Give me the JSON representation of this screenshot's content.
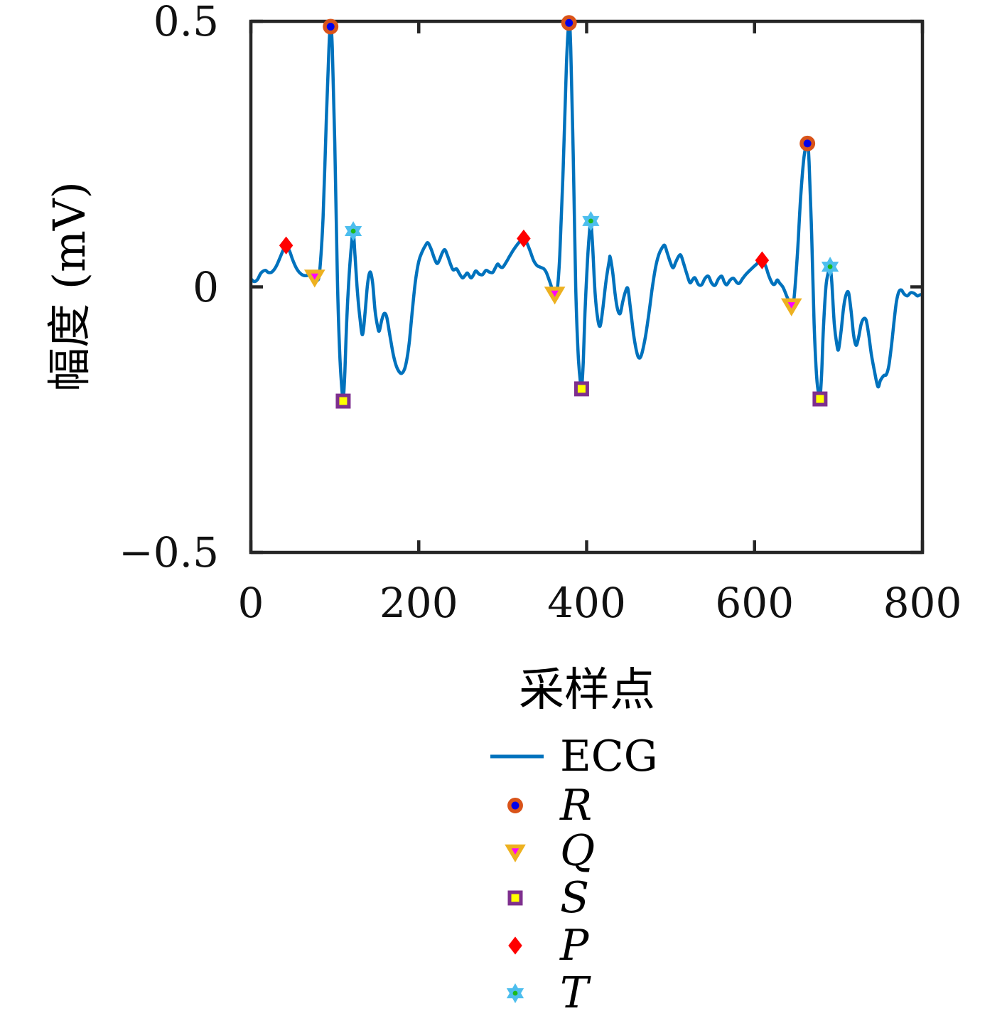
{
  "page": {
    "background": "#FFFFFF"
  },
  "chart_data": {
    "type": "line",
    "title": "",
    "xlabel": "采样点",
    "ylabel": "幅度 (mV)",
    "xlim": [
      0,
      800
    ],
    "ylim": [
      -0.5,
      0.5
    ],
    "grid": false,
    "legend_position": "below-center",
    "colors": {
      "line": "#0072BD",
      "axis": "#262626",
      "tick_text": "#111111"
    },
    "xticks": [
      {
        "v": 0,
        "label": "0"
      },
      {
        "v": 200,
        "label": "200"
      },
      {
        "v": 400,
        "label": "400"
      },
      {
        "v": 600,
        "label": "600"
      },
      {
        "v": 800,
        "label": "800"
      }
    ],
    "yticks": [
      {
        "v": -0.5,
        "label": "−0.5"
      },
      {
        "v": 0,
        "label": "0"
      },
      {
        "v": 0.5,
        "label": "0.5"
      }
    ],
    "series": [
      {
        "name": "ECG",
        "type": "line",
        "points": [
          [
            0,
            0.015
          ],
          [
            4,
            0.01
          ],
          [
            8,
            0.014
          ],
          [
            12,
            0.026
          ],
          [
            17,
            0.031
          ],
          [
            21,
            0.027
          ],
          [
            25,
            0.028
          ],
          [
            30,
            0.038
          ],
          [
            35,
            0.056
          ],
          [
            39,
            0.071
          ],
          [
            42,
            0.078
          ],
          [
            46,
            0.068
          ],
          [
            50,
            0.05
          ],
          [
            55,
            0.033
          ],
          [
            60,
            0.024
          ],
          [
            65,
            0.021
          ],
          [
            70,
            0.023
          ],
          [
            73,
            0.024
          ],
          [
            76,
            0.02
          ],
          [
            79,
            0.012
          ],
          [
            82,
            0.03
          ],
          [
            86,
            0.13
          ],
          [
            90,
            0.32
          ],
          [
            93,
            0.45
          ],
          [
            95,
            0.49
          ],
          [
            97,
            0.45
          ],
          [
            100,
            0.27
          ],
          [
            103,
            0.02
          ],
          [
            106,
            -0.13
          ],
          [
            109,
            -0.205
          ],
          [
            110,
            -0.215
          ],
          [
            112,
            -0.16
          ],
          [
            114,
            -0.07
          ],
          [
            117,
            0.02
          ],
          [
            120,
            0.082
          ],
          [
            122,
            0.105
          ],
          [
            124,
            0.06
          ],
          [
            127,
            -0.01
          ],
          [
            130,
            -0.06
          ],
          [
            133,
            -0.09
          ],
          [
            136,
            -0.05
          ],
          [
            139,
            0.005
          ],
          [
            142,
            0.028
          ],
          [
            145,
            0.008
          ],
          [
            148,
            -0.045
          ],
          [
            151,
            -0.075
          ],
          [
            153,
            -0.083
          ],
          [
            156,
            -0.062
          ],
          [
            159,
            -0.05
          ],
          [
            162,
            -0.058
          ],
          [
            166,
            -0.095
          ],
          [
            170,
            -0.13
          ],
          [
            174,
            -0.152
          ],
          [
            179,
            -0.163
          ],
          [
            183,
            -0.155
          ],
          [
            186,
            -0.135
          ],
          [
            189,
            -0.1
          ],
          [
            192,
            -0.05
          ],
          [
            196,
            0.01
          ],
          [
            200,
            0.048
          ],
          [
            204,
            0.066
          ],
          [
            208,
            0.078
          ],
          [
            211,
            0.083
          ],
          [
            215,
            0.07
          ],
          [
            219,
            0.052
          ],
          [
            222,
            0.044
          ],
          [
            225,
            0.052
          ],
          [
            228,
            0.064
          ],
          [
            231,
            0.07
          ],
          [
            234,
            0.06
          ],
          [
            238,
            0.042
          ],
          [
            241,
            0.032
          ],
          [
            245,
            0.034
          ],
          [
            248,
            0.026
          ],
          [
            252,
            0.017
          ],
          [
            255,
            0.021
          ],
          [
            258,
            0.026
          ],
          [
            262,
            0.017
          ],
          [
            265,
            0.022
          ],
          [
            268,
            0.03
          ],
          [
            272,
            0.024
          ],
          [
            276,
            0.023
          ],
          [
            280,
            0.031
          ],
          [
            284,
            0.028
          ],
          [
            288,
            0.027
          ],
          [
            291,
            0.035
          ],
          [
            294,
            0.043
          ],
          [
            297,
            0.038
          ],
          [
            300,
            0.037
          ],
          [
            304,
            0.046
          ],
          [
            308,
            0.057
          ],
          [
            313,
            0.07
          ],
          [
            318,
            0.081
          ],
          [
            322,
            0.088
          ],
          [
            325,
            0.091
          ],
          [
            329,
            0.082
          ],
          [
            333,
            0.066
          ],
          [
            337,
            0.049
          ],
          [
            341,
            0.04
          ],
          [
            345,
            0.037
          ],
          [
            349,
            0.034
          ],
          [
            352,
            0.027
          ],
          [
            356,
            0.01
          ],
          [
            359,
            -0.004
          ],
          [
            362,
            -0.012
          ],
          [
            365,
            -0.005
          ],
          [
            368,
            0.06
          ],
          [
            372,
            0.22
          ],
          [
            376,
            0.42
          ],
          [
            379,
            0.497
          ],
          [
            381,
            0.45
          ],
          [
            384,
            0.25
          ],
          [
            387,
            0
          ],
          [
            390,
            -0.13
          ],
          [
            393,
            -0.185
          ],
          [
            394,
            -0.192
          ],
          [
            396,
            -0.14
          ],
          [
            398,
            -0.05
          ],
          [
            401,
            0.05
          ],
          [
            404,
            0.115
          ],
          [
            405,
            0.124
          ],
          [
            407,
            0.08
          ],
          [
            410,
            -0.01
          ],
          [
            413,
            -0.058
          ],
          [
            416,
            -0.074
          ],
          [
            419,
            -0.045
          ],
          [
            423,
            0.01
          ],
          [
            427,
            0.05
          ],
          [
            428,
            0.056
          ],
          [
            431,
            0.028
          ],
          [
            434,
            -0.015
          ],
          [
            437,
            -0.043
          ],
          [
            440,
            -0.05
          ],
          [
            443,
            -0.028
          ],
          [
            446,
            -0.01
          ],
          [
            449,
            -0.003
          ],
          [
            452,
            -0.038
          ],
          [
            456,
            -0.09
          ],
          [
            460,
            -0.125
          ],
          [
            463,
            -0.134
          ],
          [
            466,
            -0.124
          ],
          [
            470,
            -0.094
          ],
          [
            474,
            -0.052
          ],
          [
            478,
            -0.004
          ],
          [
            482,
            0.036
          ],
          [
            486,
            0.061
          ],
          [
            490,
            0.074
          ],
          [
            493,
            0.078
          ],
          [
            496,
            0.064
          ],
          [
            500,
            0.045
          ],
          [
            503,
            0.036
          ],
          [
            506,
            0.046
          ],
          [
            509,
            0.056
          ],
          [
            512,
            0.06
          ],
          [
            515,
            0.047
          ],
          [
            519,
            0.026
          ],
          [
            523,
            0.008
          ],
          [
            526,
            0.013
          ],
          [
            529,
            0.017
          ],
          [
            533,
            0.005
          ],
          [
            537,
            0.004
          ],
          [
            541,
            0.016
          ],
          [
            545,
            0.02
          ],
          [
            549,
            0.007
          ],
          [
            553,
            0.003
          ],
          [
            557,
            0.015
          ],
          [
            561,
            0.02
          ],
          [
            564,
            0.009
          ],
          [
            567,
            0.004
          ],
          [
            571,
            0.013
          ],
          [
            575,
            0.016
          ],
          [
            579,
            0.008
          ],
          [
            582,
            0.007
          ],
          [
            586,
            0.016
          ],
          [
            590,
            0.024
          ],
          [
            595,
            0.032
          ],
          [
            599,
            0.038
          ],
          [
            604,
            0.045
          ],
          [
            609,
            0.05
          ],
          [
            613,
            0.04
          ],
          [
            617,
            0.021
          ],
          [
            621,
            0.007
          ],
          [
            624,
            0.005
          ],
          [
            627,
            0.013
          ],
          [
            630,
            0.007
          ],
          [
            634,
            -0.001
          ],
          [
            638,
            -0.016
          ],
          [
            641,
            -0.027
          ],
          [
            644,
            -0.034
          ],
          [
            647,
            -0.022
          ],
          [
            651,
            0.06
          ],
          [
            655,
            0.17
          ],
          [
            659,
            0.245
          ],
          [
            663,
            0.27
          ],
          [
            665,
            0.235
          ],
          [
            668,
            0.1
          ],
          [
            671,
            -0.07
          ],
          [
            674,
            -0.17
          ],
          [
            677,
            -0.207
          ],
          [
            678,
            -0.211
          ],
          [
            680,
            -0.16
          ],
          [
            682,
            -0.08
          ],
          [
            685,
            0
          ],
          [
            688,
            0.028
          ],
          [
            690,
            0.038
          ],
          [
            692,
            0.01
          ],
          [
            695,
            -0.07
          ],
          [
            698,
            -0.108
          ],
          [
            700,
            -0.118
          ],
          [
            703,
            -0.085
          ],
          [
            706,
            -0.04
          ],
          [
            709,
            -0.015
          ],
          [
            712,
            -0.011
          ],
          [
            715,
            -0.045
          ],
          [
            718,
            -0.09
          ],
          [
            721,
            -0.11
          ],
          [
            724,
            -0.095
          ],
          [
            727,
            -0.07
          ],
          [
            730,
            -0.06
          ],
          [
            733,
            -0.063
          ],
          [
            736,
            -0.09
          ],
          [
            739,
            -0.125
          ],
          [
            743,
            -0.16
          ],
          [
            747,
            -0.188
          ],
          [
            750,
            -0.176
          ],
          [
            754,
            -0.167
          ],
          [
            757,
            -0.165
          ],
          [
            760,
            -0.148
          ],
          [
            763,
            -0.112
          ],
          [
            766,
            -0.068
          ],
          [
            769,
            -0.028
          ],
          [
            772,
            -0.009
          ],
          [
            775,
            -0.006
          ],
          [
            778,
            -0.013
          ],
          [
            782,
            -0.017
          ],
          [
            786,
            -0.011
          ],
          [
            790,
            -0.012
          ],
          [
            794,
            -0.017
          ],
          [
            797,
            -0.015
          ],
          [
            800,
            -0.014
          ]
        ]
      }
    ],
    "marker_series": [
      {
        "name": "R",
        "shape": "circle",
        "face": "#0000EA",
        "edge": "#D95319",
        "points": [
          [
            95,
            0.49
          ],
          [
            379,
            0.497
          ],
          [
            663,
            0.27
          ]
        ]
      },
      {
        "name": "Q",
        "shape": "triangle-down",
        "face": "#FF00FF",
        "edge": "#EDB120",
        "points": [
          [
            76,
            0.02
          ],
          [
            362,
            -0.012
          ],
          [
            644,
            -0.034
          ]
        ]
      },
      {
        "name": "S",
        "shape": "square",
        "face": "#FFFF00",
        "edge": "#7E2F8E",
        "points": [
          [
            110,
            -0.215
          ],
          [
            394,
            -0.192
          ],
          [
            678,
            -0.211
          ]
        ]
      },
      {
        "name": "P",
        "shape": "diamond",
        "face": "#FF0000",
        "edge": "#FF0000",
        "points": [
          [
            42,
            0.078
          ],
          [
            325,
            0.091
          ],
          [
            609,
            0.05
          ]
        ]
      },
      {
        "name": "T",
        "shape": "hexagram",
        "face": "#4DBEEE",
        "edge": "#4DBEEE",
        "center_dot": "#1DB91D",
        "points": [
          [
            122,
            0.105
          ],
          [
            405,
            0.124
          ],
          [
            690,
            0.038
          ]
        ]
      }
    ],
    "legend": {
      "items": [
        {
          "label": "ECG",
          "marker": "line"
        },
        {
          "label": "R",
          "marker": "R"
        },
        {
          "label": "Q",
          "marker": "Q"
        },
        {
          "label": "S",
          "marker": "S"
        },
        {
          "label": "P",
          "marker": "P"
        },
        {
          "label": "T",
          "marker": "T"
        }
      ]
    }
  }
}
